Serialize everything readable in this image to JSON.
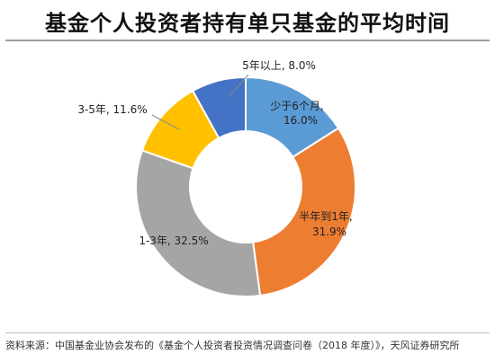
{
  "title": "基金个人投资者持有单只基金的平均时间",
  "source": "资料来源：中国基金业协会发布的《基金个人投资者投资情况调查问卷（2018 年度）》，天风证券研究所",
  "chart_data": {
    "type": "pie",
    "variant": "donut",
    "categories": [
      "少于6个月",
      "半年到1年",
      "1-3年",
      "3-5年",
      "5年以上"
    ],
    "values": [
      16.0,
      31.9,
      32.5,
      11.6,
      8.0
    ],
    "data_labels": [
      [
        "少于6个月,",
        "16.0%"
      ],
      [
        "半年到1年,",
        "31.9%"
      ],
      [
        "1-3年, 32.5%"
      ],
      [
        "3-5年, 11.6%"
      ],
      [
        "5年以上, 8.0%"
      ]
    ],
    "colors": [
      "#5b9bd5",
      "#ed7d31",
      "#a5a5a5",
      "#ffc000",
      "#4472c4"
    ],
    "legend": "none"
  }
}
